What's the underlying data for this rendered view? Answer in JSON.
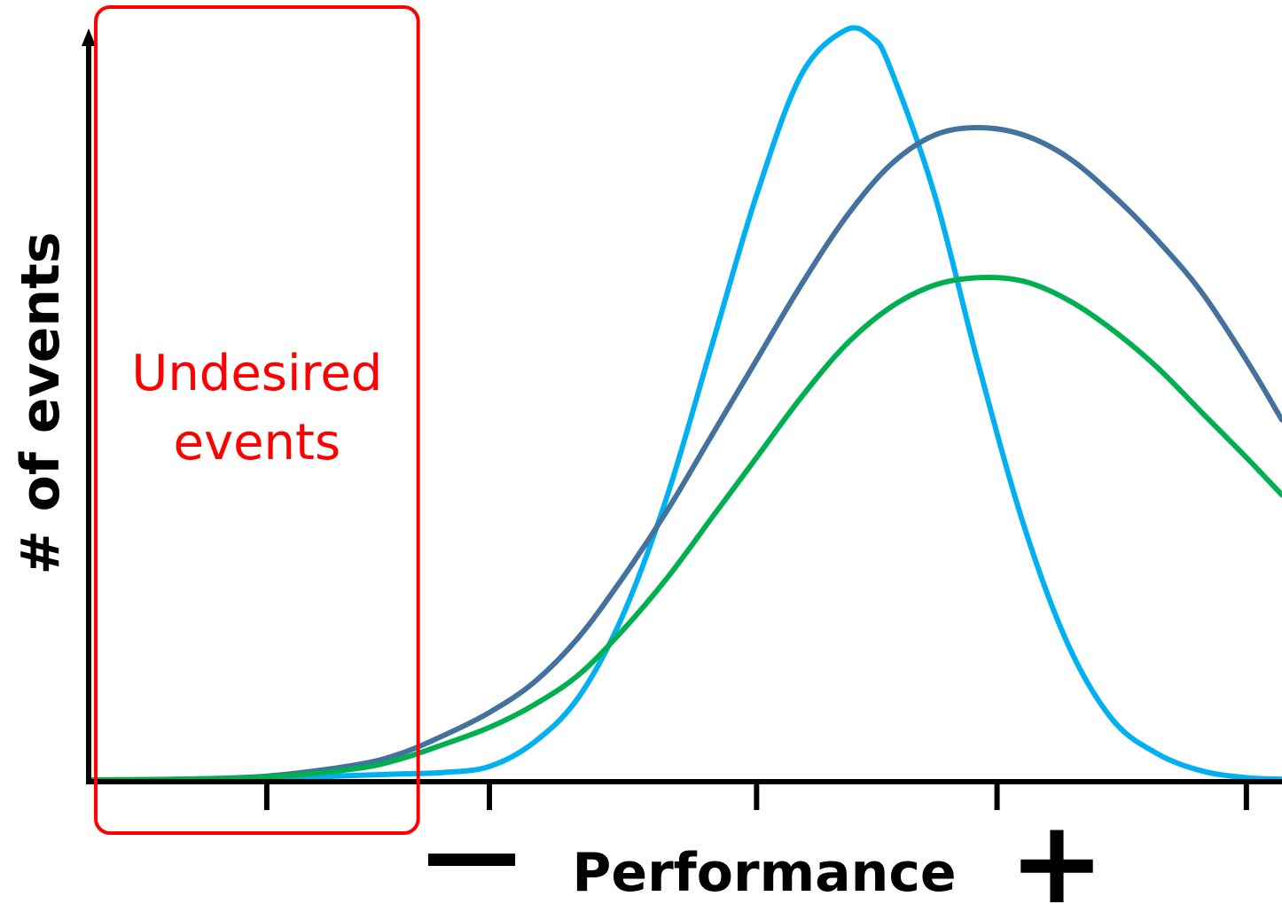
{
  "chart_data": {
    "type": "line",
    "title": "",
    "xlabel": "Performance",
    "ylabel": "# of events",
    "x_minus_label": "—",
    "x_plus_label": "+",
    "xlim": [
      0,
      13.4
    ],
    "ylim": [
      0,
      1
    ],
    "ticks": [
      2,
      4.5,
      7.5,
      10.2,
      13
    ],
    "grid": false,
    "legend": "none",
    "annotation": {
      "text_lines": [
        "Undesired",
        "events"
      ],
      "x_range": [
        0.1,
        3.7
      ],
      "color": "#ff0000"
    },
    "series": [
      {
        "color": "#00b0f0",
        "x": [
          0,
          1,
          2,
          3,
          3.5,
          4,
          4.5,
          5,
          5.5,
          6,
          6.5,
          7,
          7.5,
          8,
          8.5,
          8.8,
          9,
          9.5,
          10,
          10.5,
          11,
          11.5,
          12,
          12.5,
          13,
          13.4
        ],
        "y": [
          0,
          0,
          0.002,
          0.006,
          0.008,
          0.01,
          0.018,
          0.05,
          0.11,
          0.22,
          0.38,
          0.58,
          0.78,
          0.94,
          1.0,
          0.99,
          0.95,
          0.78,
          0.55,
          0.34,
          0.18,
          0.08,
          0.035,
          0.012,
          0.003,
          0.001
        ]
      },
      {
        "color": "#44729f",
        "x": [
          0,
          1,
          2,
          3,
          3.5,
          4,
          4.5,
          5,
          5.5,
          6,
          6.5,
          7,
          7.5,
          8,
          8.5,
          9,
          9.5,
          10,
          10.5,
          11,
          11.5,
          12,
          12.5,
          13,
          13.4
        ],
        "y": [
          0,
          0.001,
          0.005,
          0.02,
          0.035,
          0.06,
          0.09,
          0.13,
          0.19,
          0.27,
          0.36,
          0.46,
          0.56,
          0.66,
          0.75,
          0.82,
          0.86,
          0.87,
          0.86,
          0.83,
          0.78,
          0.72,
          0.65,
          0.56,
          0.48
        ]
      },
      {
        "color": "#00b050",
        "x": [
          0,
          1,
          2,
          3,
          3.5,
          4,
          4.5,
          5,
          5.5,
          6,
          6.5,
          7,
          7.5,
          8,
          8.5,
          9,
          9.5,
          10,
          10.5,
          11,
          11.5,
          12,
          12.5,
          13,
          13.4
        ],
        "y": [
          0,
          0.001,
          0.004,
          0.015,
          0.028,
          0.048,
          0.07,
          0.1,
          0.14,
          0.2,
          0.27,
          0.35,
          0.43,
          0.51,
          0.58,
          0.63,
          0.66,
          0.67,
          0.665,
          0.64,
          0.6,
          0.55,
          0.49,
          0.43,
          0.38
        ]
      }
    ]
  }
}
